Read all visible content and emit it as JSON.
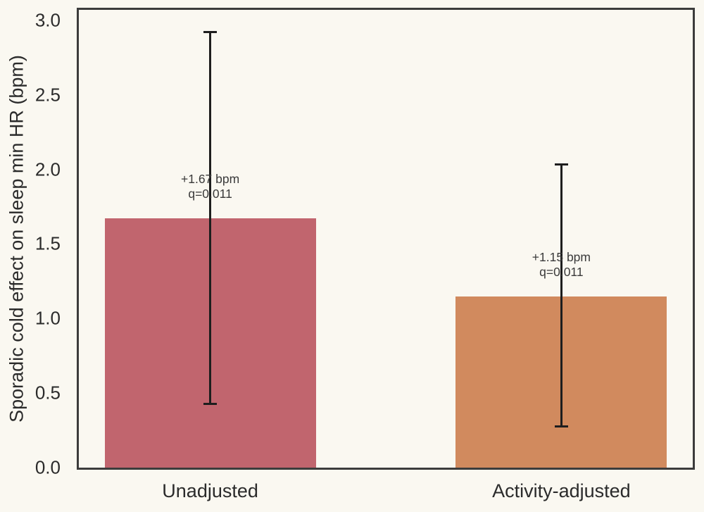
{
  "chart_data": {
    "type": "bar",
    "title": "",
    "xlabel": "",
    "ylabel": "Sporadic cold effect on sleep min HR (bpm)",
    "ylim": [
      0,
      3.07
    ],
    "yticks": [
      0.0,
      0.5,
      1.0,
      1.5,
      2.0,
      2.5,
      3.0
    ],
    "ytick_labels": [
      "0.0",
      "0.5",
      "1.0",
      "1.5",
      "2.0",
      "2.5",
      "3.0"
    ],
    "grid": false,
    "legend": null,
    "categories": [
      "Unadjusted",
      "Activity-adjusted"
    ],
    "bars": [
      {
        "label": "Unadjusted",
        "value": 1.67,
        "ci_low": 0.42,
        "ci_high": 2.93,
        "color": "#c1656e",
        "annotation_line1": "+1.67 bpm",
        "annotation_line2": "q=0.011"
      },
      {
        "label": "Activity-adjusted",
        "value": 1.15,
        "ci_low": 0.27,
        "ci_high": 2.04,
        "color": "#d18a5e",
        "annotation_line1": "+1.15 bpm",
        "annotation_line2": "q=0.011"
      }
    ],
    "colors": {
      "background": "#faf8f1",
      "frame": "#3c3c3c",
      "errorbar": "#1e1e1e",
      "text": "#2b2b2b"
    }
  }
}
